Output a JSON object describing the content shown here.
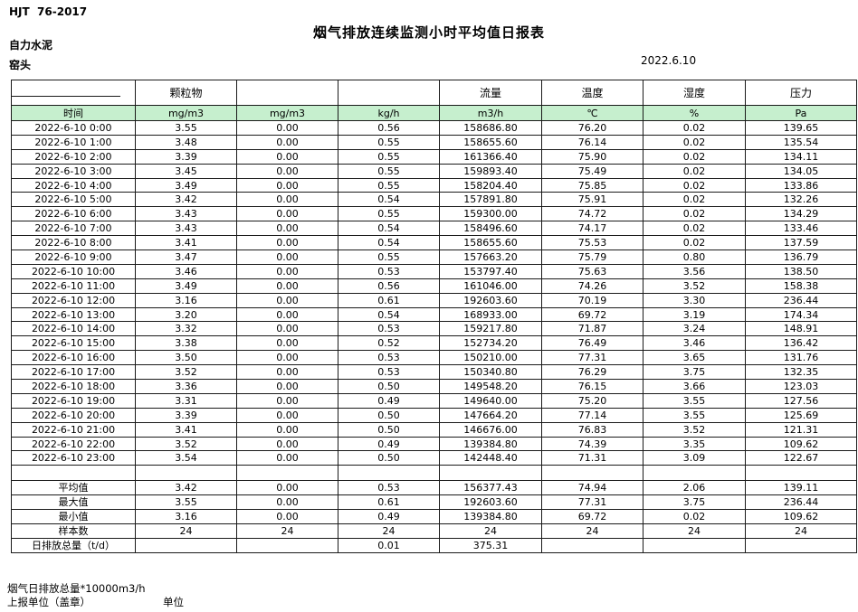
{
  "page": {
    "standard_label": "HJT  76-2017",
    "title": "烟气排放连续监测小时平均值日报表",
    "company": "自力水泥",
    "location": "窑头",
    "date": "2022.6.10"
  },
  "colors": {
    "unit_row_green": "#c6efce",
    "border": "#1a1a1a"
  },
  "table": {
    "group_headers": [
      "",
      "颗粒物",
      "",
      "",
      "流量",
      "温度",
      "湿度",
      "压力"
    ],
    "unit_row": [
      "时间",
      "mg/m3",
      "mg/m3",
      "kg/h",
      "m3/h",
      "℃",
      "%",
      "Pa"
    ],
    "rows": [
      [
        "2022-6-10 0:00",
        "3.55",
        "0.00",
        "0.56",
        "158686.80",
        "76.20",
        "0.02",
        "139.65"
      ],
      [
        "2022-6-10 1:00",
        "3.48",
        "0.00",
        "0.55",
        "158655.60",
        "76.14",
        "0.02",
        "135.54"
      ],
      [
        "2022-6-10 2:00",
        "3.39",
        "0.00",
        "0.55",
        "161366.40",
        "75.90",
        "0.02",
        "134.11"
      ],
      [
        "2022-6-10 3:00",
        "3.45",
        "0.00",
        "0.55",
        "159893.40",
        "75.49",
        "0.02",
        "134.05"
      ],
      [
        "2022-6-10 4:00",
        "3.49",
        "0.00",
        "0.55",
        "158204.40",
        "75.85",
        "0.02",
        "133.86"
      ],
      [
        "2022-6-10 5:00",
        "3.42",
        "0.00",
        "0.54",
        "157891.80",
        "75.91",
        "0.02",
        "132.26"
      ],
      [
        "2022-6-10 6:00",
        "3.43",
        "0.00",
        "0.55",
        "159300.00",
        "74.72",
        "0.02",
        "134.29"
      ],
      [
        "2022-6-10 7:00",
        "3.43",
        "0.00",
        "0.54",
        "158496.60",
        "74.17",
        "0.02",
        "133.46"
      ],
      [
        "2022-6-10 8:00",
        "3.41",
        "0.00",
        "0.54",
        "158655.60",
        "75.53",
        "0.02",
        "137.59"
      ],
      [
        "2022-6-10 9:00",
        "3.47",
        "0.00",
        "0.55",
        "157663.20",
        "75.79",
        "0.80",
        "136.79"
      ],
      [
        "2022-6-10 10:00",
        "3.46",
        "0.00",
        "0.53",
        "153797.40",
        "75.63",
        "3.56",
        "138.50"
      ],
      [
        "2022-6-10 11:00",
        "3.49",
        "0.00",
        "0.56",
        "161046.00",
        "74.26",
        "3.52",
        "158.38"
      ],
      [
        "2022-6-10 12:00",
        "3.16",
        "0.00",
        "0.61",
        "192603.60",
        "70.19",
        "3.30",
        "236.44"
      ],
      [
        "2022-6-10 13:00",
        "3.20",
        "0.00",
        "0.54",
        "168933.00",
        "69.72",
        "3.19",
        "174.34"
      ],
      [
        "2022-6-10 14:00",
        "3.32",
        "0.00",
        "0.53",
        "159217.80",
        "71.87",
        "3.24",
        "148.91"
      ],
      [
        "2022-6-10 15:00",
        "3.38",
        "0.00",
        "0.52",
        "152734.20",
        "76.49",
        "3.46",
        "136.42"
      ],
      [
        "2022-6-10 16:00",
        "3.50",
        "0.00",
        "0.53",
        "150210.00",
        "77.31",
        "3.65",
        "131.76"
      ],
      [
        "2022-6-10 17:00",
        "3.52",
        "0.00",
        "0.53",
        "150340.80",
        "76.29",
        "3.75",
        "132.35"
      ],
      [
        "2022-6-10 18:00",
        "3.36",
        "0.00",
        "0.50",
        "149548.20",
        "76.15",
        "3.66",
        "123.03"
      ],
      [
        "2022-6-10 19:00",
        "3.31",
        "0.00",
        "0.49",
        "149640.00",
        "75.20",
        "3.55",
        "127.56"
      ],
      [
        "2022-6-10 20:00",
        "3.39",
        "0.00",
        "0.50",
        "147664.20",
        "77.14",
        "3.55",
        "125.69"
      ],
      [
        "2022-6-10 21:00",
        "3.41",
        "0.00",
        "0.50",
        "146676.00",
        "76.83",
        "3.52",
        "121.31"
      ],
      [
        "2022-6-10 22:00",
        "3.52",
        "0.00",
        "0.49",
        "139384.80",
        "74.39",
        "3.35",
        "109.62"
      ],
      [
        "2022-6-10 23:00",
        "3.54",
        "0.00",
        "0.50",
        "142448.40",
        "71.31",
        "3.09",
        "122.67"
      ]
    ],
    "summary_rows": [
      [
        "平均值",
        "3.42",
        "0.00",
        "0.53",
        "156377.43",
        "74.94",
        "2.06",
        "139.11"
      ],
      [
        "最大值",
        "3.55",
        "0.00",
        "0.61",
        "192603.60",
        "77.31",
        "3.75",
        "236.44"
      ],
      [
        "最小值",
        "3.16",
        "0.00",
        "0.49",
        "139384.80",
        "69.72",
        "0.02",
        "109.62"
      ],
      [
        "样本数",
        "24",
        "24",
        "24",
        "24",
        "24",
        "24",
        "24"
      ],
      [
        "日排放总量（t/d）",
        "",
        "",
        "0.01",
        "375.31",
        "",
        "",
        ""
      ]
    ]
  },
  "footer": {
    "note_flow_total": "烟气日排放总量*10000m3/h",
    "note_report_unit": "上报单位（盖章）",
    "note_unit": "单位"
  }
}
